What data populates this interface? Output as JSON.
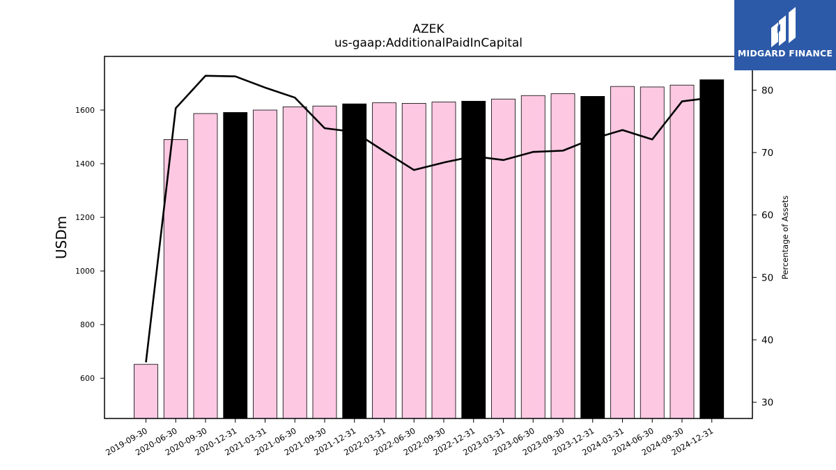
{
  "chart_data": {
    "type": "bar",
    "title": "AZEK",
    "subtitle": "us-gaap:AdditionalPaidInCapital",
    "ylabel": "USDm",
    "y2label": "Percentage of Assets",
    "ylim": [
      450,
      1800
    ],
    "y2lim": [
      27.4,
      85.4
    ],
    "yticks": [
      600,
      800,
      1000,
      1200,
      1400,
      1600
    ],
    "y2ticks": [
      30,
      40,
      50,
      60,
      70,
      80
    ],
    "categories": [
      "2019-09-30",
      "2020-06-30",
      "2020-09-30",
      "2020-12-31",
      "2021-03-31",
      "2021-06-30",
      "2021-09-30",
      "2021-12-31",
      "2022-03-31",
      "2022-06-30",
      "2022-09-30",
      "2022-12-31",
      "2023-03-31",
      "2023-06-30",
      "2023-09-30",
      "2023-12-31",
      "2024-03-31",
      "2024-06-30",
      "2024-09-30",
      "2024-12-31"
    ],
    "series": [
      {
        "values": [
          652,
          1490,
          1587,
          1591,
          1600,
          1612,
          1615,
          1623,
          1627,
          1625,
          1630,
          1633,
          1641,
          1654,
          1661,
          1651,
          1688,
          1686,
          1693,
          1713
        ],
        "kind": "bar",
        "axis": "left",
        "colors": [
          "#fcc8e2",
          "#fcc8e2",
          "#fcc8e2",
          "#000000",
          "#fcc8e2",
          "#fcc8e2",
          "#fcc8e2",
          "#000000",
          "#fcc8e2",
          "#fcc8e2",
          "#fcc8e2",
          "#000000",
          "#fcc8e2",
          "#fcc8e2",
          "#fcc8e2",
          "#000000",
          "#fcc8e2",
          "#fcc8e2",
          "#fcc8e2",
          "#000000"
        ]
      },
      {
        "values": [
          36.4,
          77.1,
          82.3,
          82.2,
          80.4,
          78.8,
          73.9,
          73.3,
          70.2,
          67.2,
          68.4,
          69.4,
          68.8,
          70.1,
          70.3,
          72.2,
          73.6,
          72.1,
          78.2,
          78.8
        ],
        "kind": "line",
        "axis": "right",
        "color": "#000000"
      }
    ],
    "grid": false,
    "legend": "none"
  },
  "logo": {
    "text": "MIDGARD FINANCE",
    "background": "#2d5aa8"
  }
}
